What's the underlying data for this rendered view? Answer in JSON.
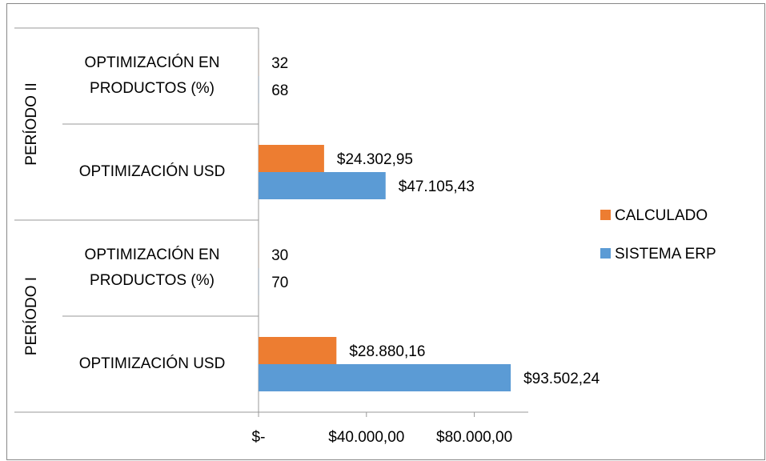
{
  "chart_data": {
    "type": "bar",
    "orientation": "horizontal",
    "groups": [
      {
        "name": "PERÍODO I",
        "categories": [
          "OPTIMIZACIÓN USD",
          "OPTIMIZACIÓN EN PRODUCTOS (%)"
        ]
      },
      {
        "name": "PERÍODO II",
        "categories": [
          "OPTIMIZACIÓN USD",
          "OPTIMIZACIÓN EN PRODUCTOS (%)"
        ]
      }
    ],
    "series": [
      {
        "name": "SISTEMA ERP",
        "color": "#5b9bd5",
        "values": [
          93502.24,
          70,
          47105.43,
          68
        ],
        "value_labels": [
          "$93.502,24",
          "70",
          "$47.105,43",
          "68"
        ]
      },
      {
        "name": "CALCULADO",
        "color": "#ed7d31",
        "values": [
          28880.16,
          30,
          24302.95,
          32
        ],
        "value_labels": [
          "$28.880,16",
          "30",
          "$24.302,95",
          "32"
        ]
      }
    ],
    "xlim": [
      0,
      100000
    ],
    "xticks": [
      {
        "value": 0,
        "label": "$-"
      },
      {
        "value": 40000,
        "label": "$40.000,00"
      },
      {
        "value": 80000,
        "label": "$80.000,00"
      }
    ],
    "legend": "right"
  }
}
